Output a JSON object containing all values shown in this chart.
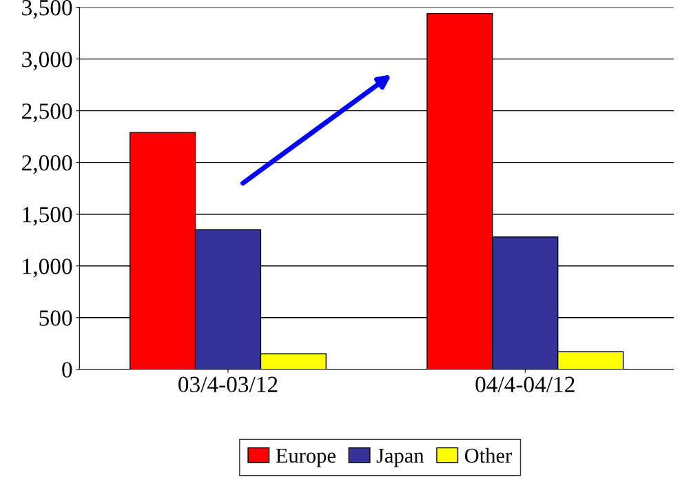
{
  "chart_data": {
    "type": "bar",
    "categories": [
      "03/4-03/12",
      "04/4-04/12"
    ],
    "series": [
      {
        "name": "Europe",
        "color": "#ff0000",
        "values": [
          2290,
          3440
        ]
      },
      {
        "name": "Japan",
        "color": "#333399",
        "values": [
          1350,
          1280
        ]
      },
      {
        "name": "Other",
        "color": "#ffff00",
        "values": [
          150,
          170
        ]
      }
    ],
    "ylim": [
      0,
      3500
    ],
    "yticks": [
      {
        "value": 0,
        "label": "0"
      },
      {
        "value": 500,
        "label": "500"
      },
      {
        "value": 1000,
        "label": "1,000"
      },
      {
        "value": 1500,
        "label": "1,500"
      },
      {
        "value": 2000,
        "label": "2,000"
      },
      {
        "value": 2500,
        "label": "2,500"
      },
      {
        "value": 3000,
        "label": "3,000"
      },
      {
        "value": 3500,
        "label": "3,500"
      }
    ],
    "grid": "y",
    "legend": "bottom"
  }
}
